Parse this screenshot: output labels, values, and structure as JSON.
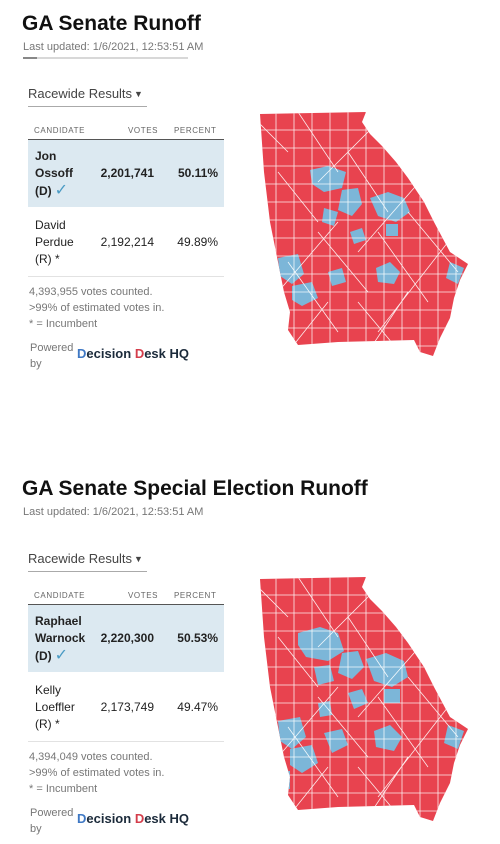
{
  "colors": {
    "rep": "#e8434f",
    "dem": "#7cb6d8",
    "win_row": "#dce9f1",
    "check": "#4a9bc4"
  },
  "races": [
    {
      "title": "GA Senate Runoff",
      "updated": "Last updated: 1/6/2021, 12:53:51 AM",
      "select": "Racewide Results",
      "columns": {
        "candidate": "CANDIDATE",
        "votes": "VOTES",
        "percent": "PERCENT"
      },
      "candidates": [
        {
          "name1": "Jon",
          "name2": "Ossoff",
          "party": "(D)",
          "votes": "2,201,741",
          "percent": "50.11%",
          "winner": true
        },
        {
          "name1": "David",
          "name2": "Perdue",
          "party": "(R) *",
          "votes": "2,192,214",
          "percent": "49.89%",
          "winner": false
        }
      ],
      "notes": [
        "4,393,955 votes counted.",
        ">99% of estimated votes in.",
        "* = Incumbent"
      ],
      "powered": [
        "Powered",
        "by"
      ],
      "brand": {
        "d": "D",
        "ecision": "ecision ",
        "d2": "D",
        "esk": "esk HQ"
      },
      "map_label": "Georgia county results map"
    },
    {
      "title": "GA Senate Special Election Runoff",
      "updated": "Last updated: 1/6/2021, 12:53:51 AM",
      "select": "Racewide Results",
      "columns": {
        "candidate": "CANDIDATE",
        "votes": "VOTES",
        "percent": "PERCENT"
      },
      "candidates": [
        {
          "name1": "Raphael",
          "name2": "Warnock",
          "party": "(D)",
          "votes": "2,220,300",
          "percent": "50.53%",
          "winner": true
        },
        {
          "name1": "Kelly",
          "name2": "Loeffler",
          "party": "(R) *",
          "votes": "2,173,749",
          "percent": "49.47%",
          "winner": false
        }
      ],
      "notes": [
        "4,394,049 votes counted.",
        ">99% of estimated votes in.",
        "* = Incumbent"
      ],
      "powered": [
        "Powered",
        "by"
      ],
      "brand": {
        "d": "D",
        "ecision": "ecision ",
        "d2": "D",
        "esk": "esk HQ"
      },
      "map_label": "Georgia county results map"
    }
  ]
}
